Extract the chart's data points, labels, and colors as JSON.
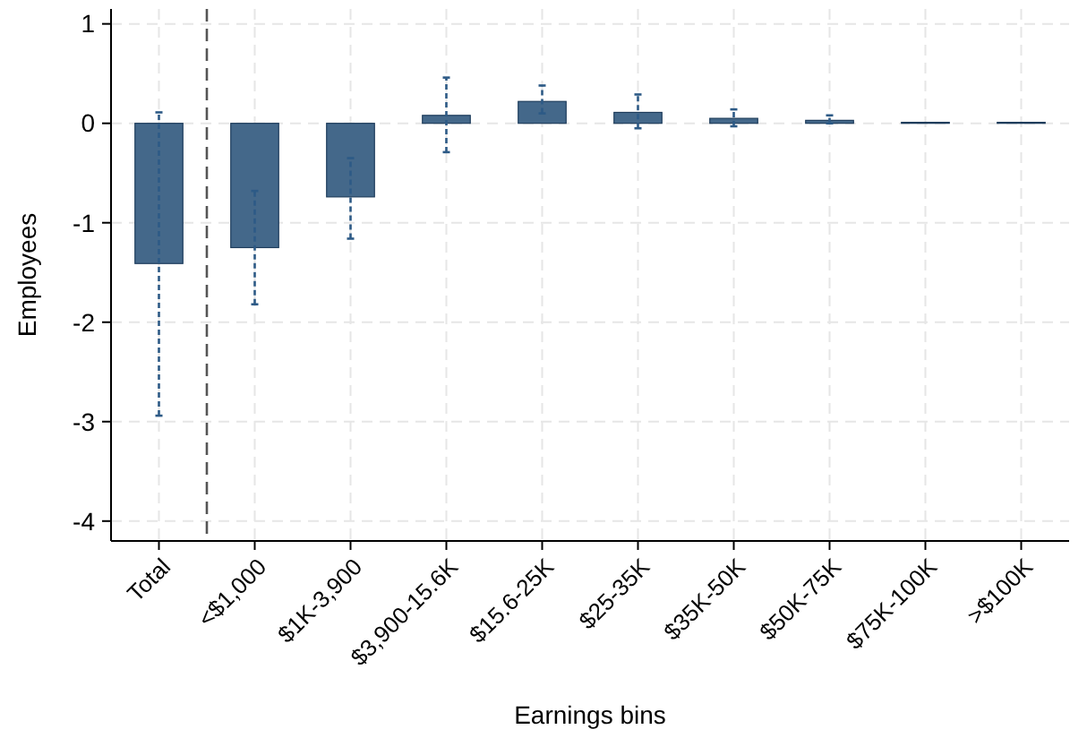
{
  "chart_data": {
    "type": "bar",
    "xlabel": "Earnings bins",
    "ylabel": "Employees",
    "categories": [
      "Total",
      "<$1,000",
      "$1K-3,900",
      "$3,900-15.6K",
      "$15.6-25K",
      "$25-35K",
      "$35K-50K",
      "$50K-75K",
      "$75K-100K",
      ">$100K"
    ],
    "values": [
      -1.41,
      -1.25,
      -0.74,
      0.08,
      0.22,
      0.11,
      0.05,
      0.03,
      0.01,
      0.01
    ],
    "errors": [
      [
        -2.94,
        0.11
      ],
      [
        -1.82,
        -0.68
      ],
      [
        -1.16,
        -0.35
      ],
      [
        -0.29,
        0.46
      ],
      [
        0.1,
        0.38
      ],
      [
        -0.05,
        0.29
      ],
      [
        -0.03,
        0.14
      ],
      [
        0,
        0.08
      ],
      null,
      null
    ],
    "color": "#44688a",
    "ylim": [
      -4.2,
      1.15
    ],
    "yticks": [
      -4,
      -3,
      -2,
      -1,
      0,
      1
    ],
    "grid": true
  }
}
